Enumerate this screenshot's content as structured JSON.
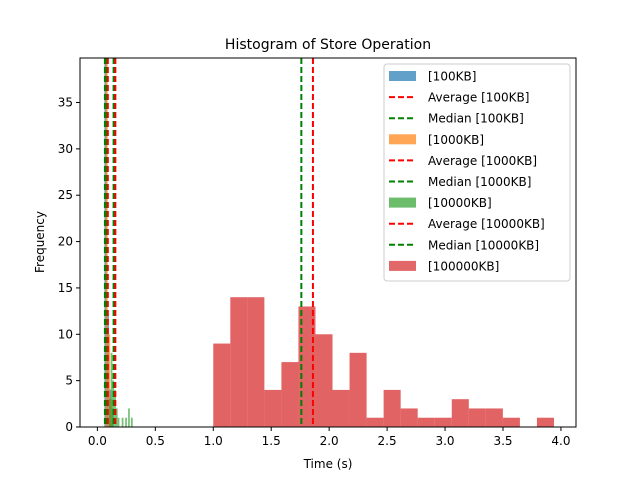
{
  "chart_data": {
    "type": "bar",
    "title": "Histogram of Store Operation",
    "xlabel": "Time (s)",
    "ylabel": "Frequency",
    "xlim": [
      -0.15,
      4.13
    ],
    "ylim": [
      0,
      39.8
    ],
    "xticks": [
      0.0,
      0.5,
      1.0,
      1.5,
      2.0,
      2.5,
      3.0,
      3.5,
      4.0
    ],
    "xtick_labels": [
      "0.0",
      "0.5",
      "1.0",
      "1.5",
      "2.0",
      "2.5",
      "3.0",
      "3.5",
      "4.0"
    ],
    "yticks": [
      0,
      5,
      10,
      15,
      20,
      25,
      30,
      35
    ],
    "ytick_labels": [
      "0",
      "5",
      "10",
      "15",
      "20",
      "25",
      "30",
      "35"
    ],
    "legend_position": "top-right",
    "series": [
      {
        "name": "[100KB]",
        "color": "#1f77b4",
        "opacity": 0.65,
        "bins": [
          [
            0.06,
            0.08,
            40
          ],
          [
            0.08,
            0.1,
            12
          ],
          [
            0.1,
            0.12,
            4
          ],
          [
            0.12,
            0.14,
            2
          ]
        ],
        "average": 0.08,
        "median": 0.065,
        "average_label": "Average [100KB]",
        "median_label": "Median [100KB]"
      },
      {
        "name": "[1000KB]",
        "color": "#ff7f0e",
        "opacity": 0.65,
        "bins": [
          [
            0.07,
            0.09,
            40
          ],
          [
            0.09,
            0.11,
            10
          ],
          [
            0.11,
            0.13,
            3
          ]
        ],
        "average": 0.09,
        "median": 0.075,
        "average_label": "Average [1000KB]",
        "median_label": "Median [1000KB]"
      },
      {
        "name": "[10000KB]",
        "color": "#2ca02c",
        "opacity": 0.65,
        "bins": [
          [
            0.1,
            0.115,
            3
          ],
          [
            0.115,
            0.13,
            8
          ],
          [
            0.13,
            0.145,
            5
          ],
          [
            0.145,
            0.16,
            4
          ],
          [
            0.16,
            0.175,
            2
          ],
          [
            0.175,
            0.19,
            1
          ],
          [
            0.21,
            0.225,
            1
          ],
          [
            0.24,
            0.255,
            1
          ],
          [
            0.265,
            0.28,
            2
          ],
          [
            0.29,
            0.305,
            1
          ]
        ],
        "average": 0.155,
        "median": 0.14,
        "average_label": "Average [10000KB]",
        "median_label": "Median [10000KB]"
      },
      {
        "name": "[100000KB]",
        "color": "#d62728",
        "opacity": 0.72,
        "bins": [
          [
            1.0,
            1.147,
            9
          ],
          [
            1.147,
            1.294,
            14
          ],
          [
            1.294,
            1.441,
            14
          ],
          [
            1.441,
            1.588,
            4
          ],
          [
            1.588,
            1.735,
            7
          ],
          [
            1.735,
            1.882,
            13
          ],
          [
            1.882,
            2.029,
            10
          ],
          [
            2.029,
            2.176,
            4
          ],
          [
            2.176,
            2.323,
            8
          ],
          [
            2.323,
            2.47,
            1
          ],
          [
            2.47,
            2.617,
            4
          ],
          [
            2.617,
            2.764,
            2
          ],
          [
            2.764,
            2.911,
            1
          ],
          [
            2.911,
            3.058,
            1
          ],
          [
            3.058,
            3.205,
            3
          ],
          [
            3.205,
            3.352,
            2
          ],
          [
            3.352,
            3.499,
            2
          ],
          [
            3.499,
            3.646,
            1
          ],
          [
            3.646,
            3.793,
            0
          ],
          [
            3.793,
            3.94,
            1
          ]
        ]
      }
    ],
    "reference_lines": {
      "average_color": "#ff0000",
      "median_color": "#008000",
      "extra_average": 1.86,
      "extra_median": 1.76
    },
    "legend": [
      {
        "kind": "patch",
        "label": "[100KB]",
        "color": "#1f77b4"
      },
      {
        "kind": "line",
        "label": "Average [100KB]",
        "color": "#ff0000"
      },
      {
        "kind": "line",
        "label": "Median [100KB]",
        "color": "#008000"
      },
      {
        "kind": "patch",
        "label": "[1000KB]",
        "color": "#ff7f0e"
      },
      {
        "kind": "line",
        "label": "Average [1000KB]",
        "color": "#ff0000"
      },
      {
        "kind": "line",
        "label": "Median [1000KB]",
        "color": "#008000"
      },
      {
        "kind": "patch",
        "label": "[10000KB]",
        "color": "#2ca02c"
      },
      {
        "kind": "line",
        "label": "Average [10000KB]",
        "color": "#ff0000"
      },
      {
        "kind": "line",
        "label": "Median [10000KB]",
        "color": "#008000"
      },
      {
        "kind": "patch",
        "label": "[100000KB]",
        "color": "#d62728"
      }
    ]
  }
}
